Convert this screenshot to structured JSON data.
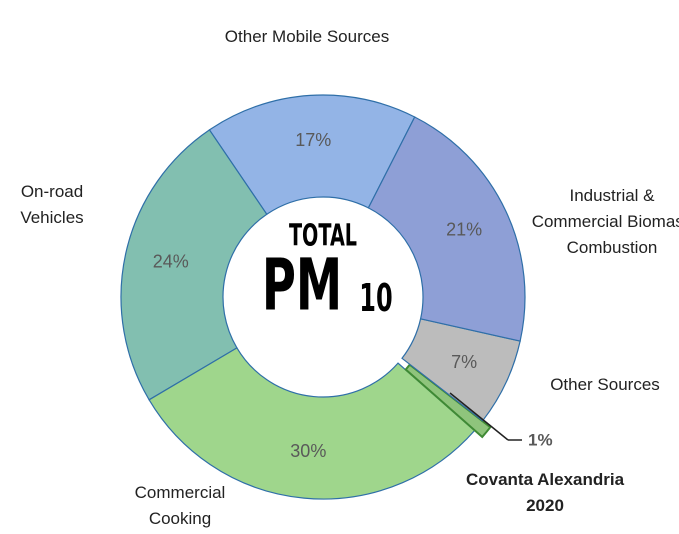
{
  "chart_data": {
    "type": "donut",
    "center_text": {
      "line1": "TOTAL",
      "line2": "PM",
      "subscript": "10"
    },
    "categories": [
      "Industrial & Commercial Biomass Combustion",
      "Other Sources",
      "Covanta Alexandria 2020",
      "Commercial Cooking",
      "On-road Vehicles",
      "Other Mobile Sources"
    ],
    "values": [
      21,
      7,
      1,
      30,
      24,
      17
    ],
    "value_labels": [
      "21%",
      "7%",
      "1%",
      "30%",
      "24%",
      "17%"
    ],
    "colors": [
      "#8e9fd6",
      "#bcbcbc",
      "#8fc47c",
      "#9fd68c",
      "#82bfb0",
      "#93b4e6"
    ],
    "highlight": "Covanta Alexandria 2020"
  }
}
